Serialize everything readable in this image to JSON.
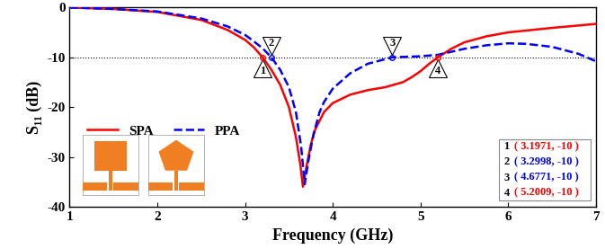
{
  "chart_data": {
    "type": "line",
    "x_label": "Frequency (GHz)",
    "y_label": "S₁₁ (dB)",
    "xlim": [
      1,
      7
    ],
    "xticks": [
      1,
      2,
      3,
      4,
      5,
      6,
      7
    ],
    "ylim": [
      -40,
      0
    ],
    "yticks": [
      -40,
      -30,
      -20,
      -10,
      0
    ],
    "grid": false,
    "legend": "center left",
    "threshold": -10,
    "series": [
      {
        "name": "SPA",
        "color": "#ff0000",
        "line_style": "solid",
        "x": [
          1,
          1.5,
          2,
          2.5,
          2.8,
          3.0,
          3.1,
          3.2,
          3.3,
          3.4,
          3.5,
          3.58,
          3.63,
          3.66,
          3.7,
          3.75,
          3.8,
          3.9,
          4.0,
          4.2,
          4.4,
          4.6,
          4.8,
          4.9,
          5.0,
          5.1,
          5.2,
          5.35,
          5.5,
          5.75,
          6.0,
          6.5,
          7.0
        ],
        "values": [
          0,
          -0.3,
          -0.9,
          -2.5,
          -4.5,
          -6.5,
          -8.0,
          -10,
          -12.5,
          -15.5,
          -20,
          -26,
          -31.5,
          -36,
          -32,
          -27.5,
          -24.5,
          -21,
          -19.2,
          -17.5,
          -16.6,
          -16,
          -15,
          -14,
          -12.8,
          -11.3,
          -10,
          -8.3,
          -7,
          -5.8,
          -5,
          -4.1,
          -3.3
        ]
      },
      {
        "name": "PPA",
        "color": "#0000ff",
        "line_style": "dashed",
        "x": [
          1,
          1.5,
          2,
          2.5,
          2.8,
          3.0,
          3.1,
          3.2,
          3.3,
          3.4,
          3.5,
          3.58,
          3.64,
          3.68,
          3.72,
          3.78,
          3.85,
          3.9,
          4.0,
          4.2,
          4.4,
          4.68,
          5.0,
          5.2,
          5.5,
          5.75,
          6.0,
          6.2,
          6.5,
          6.8,
          7.0
        ],
        "values": [
          0,
          -0.3,
          -0.8,
          -2.2,
          -3.8,
          -5.5,
          -6.8,
          -8.2,
          -10,
          -12.5,
          -16,
          -21,
          -28,
          -35.5,
          -31,
          -25.5,
          -21,
          -19,
          -16.3,
          -13.2,
          -11.3,
          -10,
          -9.8,
          -9.5,
          -8.3,
          -7.6,
          -7.2,
          -7.3,
          -7.9,
          -9.3,
          -10.8
        ]
      }
    ],
    "markers": [
      {
        "label": "1",
        "series": "SPA",
        "x": 3.1971,
        "y": -10,
        "text": "( 3.1971, -10 )"
      },
      {
        "label": "2",
        "series": "PPA",
        "x": 3.2998,
        "y": -10,
        "text": "( 3.2998, -10 )"
      },
      {
        "label": "3",
        "series": "PPA",
        "x": 4.6771,
        "y": -10,
        "text": "( 4.6771, -10 )"
      },
      {
        "label": "4",
        "series": "SPA",
        "x": 5.2009,
        "y": -10,
        "text": "( 5.2009, -10 )"
      }
    ]
  }
}
